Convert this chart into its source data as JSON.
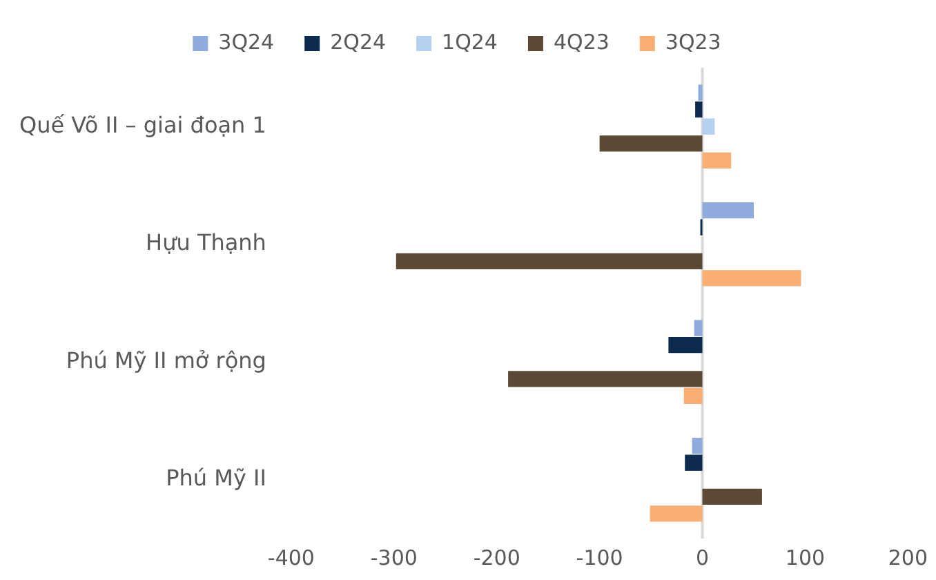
{
  "chart_data": {
    "type": "bar",
    "orientation": "horizontal",
    "categories": [
      "Quế Võ II – giai đoạn 1",
      "Hựu Thạnh",
      "Phú Mỹ II mở rộng",
      "Phú Mỹ II"
    ],
    "series": [
      {
        "name": "3Q24",
        "color": "#8faadc",
        "values": [
          -4,
          50,
          -8,
          -10
        ]
      },
      {
        "name": "2Q24",
        "color": "#0d2b4f",
        "values": [
          -7,
          -2,
          -33,
          -17
        ]
      },
      {
        "name": "1Q24",
        "color": "#b4d2f0",
        "values": [
          12,
          0,
          0,
          0
        ]
      },
      {
        "name": "4Q23",
        "color": "#5c4a36",
        "values": [
          -100,
          -298,
          -189,
          58
        ]
      },
      {
        "name": "3Q23",
        "color": "#f9ae72",
        "values": [
          28,
          96,
          -18,
          -51
        ]
      }
    ],
    "xlim": [
      -400,
      200
    ],
    "xticks": [
      -400,
      -300,
      -200,
      -100,
      0,
      100,
      200
    ],
    "ref_lines": [
      {
        "axis": "x",
        "value": 0,
        "color": "#d9d9d9"
      }
    ],
    "grid": false,
    "legend": "top"
  }
}
